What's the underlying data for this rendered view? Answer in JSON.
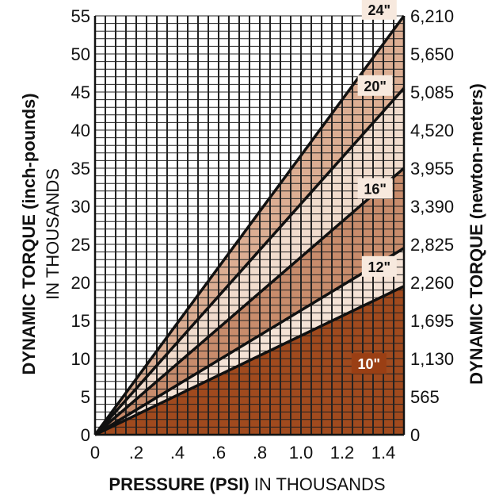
{
  "chart_data": {
    "type": "line",
    "xlabel_bold": "PRESSURE (PSI)",
    "xlabel_rest": " IN THOUSANDS",
    "ylabel_left_bold": "DYNAMIC TORQUE (inch-pounds)",
    "ylabel_left_rest": "IN THOUSANDS",
    "ylabel_right": "DYNAMIC TORQUE (newton-meters)",
    "xlim": [
      0,
      1.5
    ],
    "ylim": [
      0,
      55
    ],
    "x_ticks": [
      0,
      0.2,
      0.4,
      0.6,
      0.8,
      1.0,
      1.2,
      1.4
    ],
    "x_tick_labels": [
      "0",
      ".2",
      ".4",
      ".6",
      ".8",
      "1.0",
      "1.2",
      "1.4"
    ],
    "y_ticks": [
      0,
      5,
      10,
      15,
      20,
      25,
      30,
      35,
      40,
      45,
      50,
      55
    ],
    "y_tick_labels": [
      "0",
      "5",
      "10",
      "15",
      "20",
      "25",
      "30",
      "35",
      "40",
      "45",
      "50",
      "55"
    ],
    "y2_tick_labels": [
      "0",
      "565",
      "1,130",
      "1,695",
      "2,260",
      "2,825",
      "3,390",
      "3,955",
      "4,520",
      "5,085",
      "5,650",
      "6,210"
    ],
    "grid": true,
    "colors": {
      "band_10": "#a04a1e",
      "band_12": "#f5e3d6",
      "band_16": "#c88c6c",
      "band_20": "#f1dccd",
      "band_24": "#dcae93",
      "grid": "#222222",
      "line": "#111111",
      "light_label_bg": "#f7e9de",
      "dark_label_bg": "#9a3f14"
    },
    "series": [
      {
        "name": "10\"",
        "x": [
          0,
          1.5
        ],
        "y": [
          0,
          19.5
        ]
      },
      {
        "name": "12\"",
        "x": [
          0,
          1.5
        ],
        "y": [
          0,
          24.5
        ]
      },
      {
        "name": "16\"",
        "x": [
          0,
          1.5
        ],
        "y": [
          0,
          35.0
        ]
      },
      {
        "name": "20\"",
        "x": [
          0,
          1.5
        ],
        "y": [
          0,
          45.5
        ]
      },
      {
        "name": "24\"",
        "x": [
          0,
          1.5
        ],
        "y": [
          0,
          55.0
        ]
      }
    ]
  }
}
